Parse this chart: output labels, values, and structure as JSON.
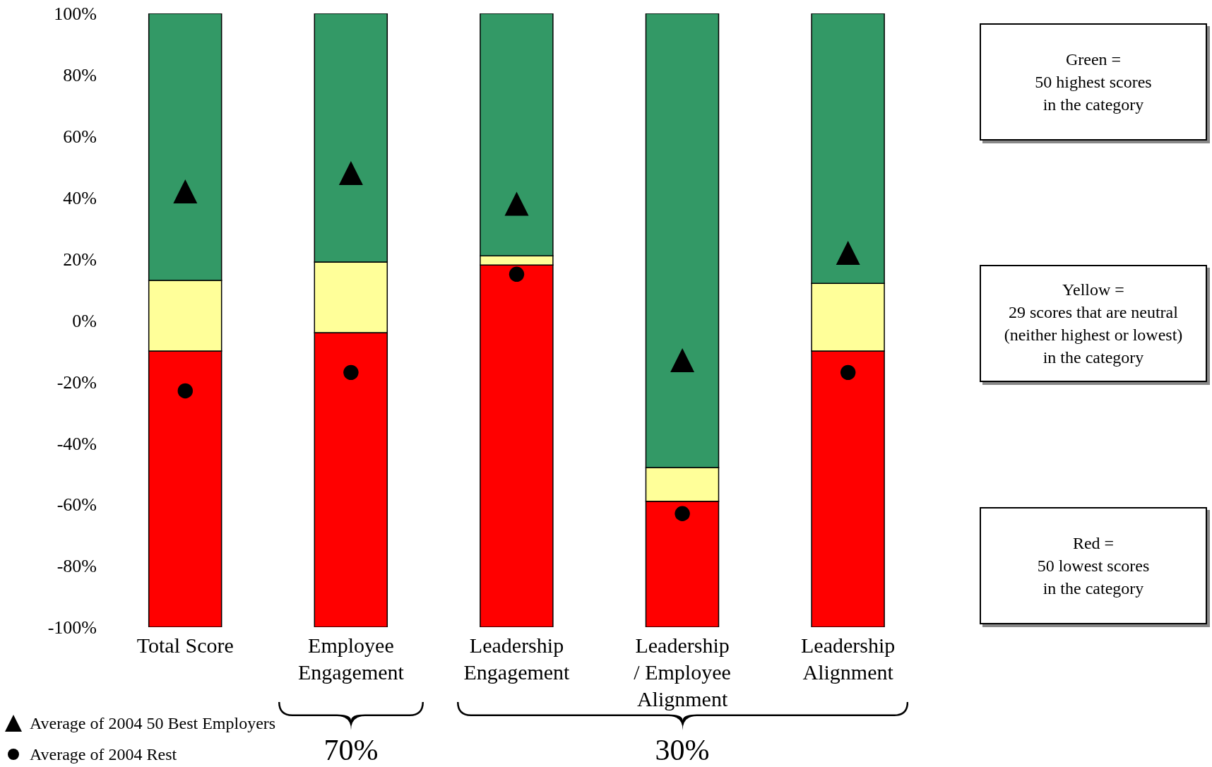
{
  "chart_data": {
    "type": "bar",
    "categories": [
      "Total Score",
      "Employee Engagement",
      "Leadership Engagement",
      "Leadership / Employee Alignment",
      "Leadership Alignment"
    ],
    "series": [
      {
        "color": "#ff0000",
        "base": [
          -100,
          -100,
          -100,
          -100,
          -100
        ],
        "values": [
          90,
          96,
          118,
          41,
          90
        ]
      },
      {
        "color": "#ffff99",
        "base": [
          -10,
          -4,
          18,
          -59,
          -10
        ],
        "values": [
          23,
          23,
          3,
          11,
          22
        ]
      },
      {
        "color": "#339966",
        "base": [
          13,
          19,
          21,
          -48,
          12
        ],
        "values": [
          87,
          81,
          79,
          148,
          88
        ]
      },
      {
        "name": "Average of 2004 50 Best Employers",
        "type": "scatter",
        "marker": "triangle",
        "color": "#000000",
        "values": [
          42,
          48,
          38,
          -13,
          22
        ]
      },
      {
        "name": "Average of 2004 Rest",
        "type": "scatter",
        "marker": "circle",
        "color": "#000000",
        "values": [
          -23,
          -17,
          15,
          -63,
          -17
        ]
      }
    ],
    "ylim": [
      -100,
      100
    ],
    "yticks": [
      {
        "value": -100,
        "label": "-100%"
      },
      {
        "value": -80,
        "label": "-80%"
      },
      {
        "value": -60,
        "label": "-60%"
      },
      {
        "value": -40,
        "label": "-40%"
      },
      {
        "value": -20,
        "label": "-20%"
      },
      {
        "value": 0,
        "label": "0%"
      },
      {
        "value": 20,
        "label": "20%"
      },
      {
        "value": 40,
        "label": "40%"
      },
      {
        "value": 60,
        "label": "60%"
      },
      {
        "value": 80,
        "label": "80%"
      },
      {
        "value": 100,
        "label": "100%"
      }
    ],
    "legend": "bottom left",
    "annotations": [
      "Green =\n50 highest scores\nin the category",
      "Yellow =\n29 scores that are neutral\n(neither highest or lowest)\nin the category",
      "Red =\n50 lowest scores\nin the category",
      "70%",
      "30%"
    ]
  }
}
